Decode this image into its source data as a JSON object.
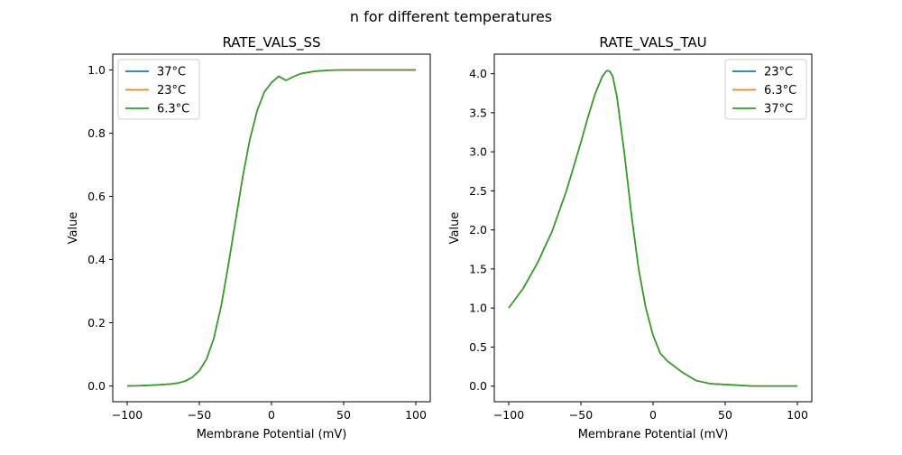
{
  "suptitle": "n for different temperatures",
  "chart_data": [
    {
      "type": "line",
      "title": "RATE_VALS_SS",
      "xlabel": "Membrane Potential (mV)",
      "ylabel": "Value",
      "xlim": [
        -110,
        110
      ],
      "ylim": [
        -0.05,
        1.05
      ],
      "xticks": [
        -100,
        -50,
        0,
        50,
        100
      ],
      "xtick_labels": [
        "−100",
        "−50",
        "0",
        "50",
        "100"
      ],
      "yticks": [
        0.0,
        0.2,
        0.4,
        0.6,
        0.8,
        1.0
      ],
      "ytick_labels": [
        "0.0",
        "0.2",
        "0.4",
        "0.6",
        "0.8",
        "1.0"
      ],
      "legend_position": "upper left",
      "grid": false,
      "x": [
        -100,
        -90,
        -80,
        -70,
        -65,
        -60,
        -55,
        -50,
        -45,
        -40,
        -35,
        -30,
        -25,
        -20,
        -15,
        -10,
        -5,
        0,
        5,
        10,
        15,
        20,
        30,
        40,
        50,
        60,
        70,
        80,
        90,
        100
      ],
      "series": [
        {
          "name": "37°C",
          "color": "#1f77b4",
          "values": [
            0.0,
            0.001,
            0.003,
            0.006,
            0.009,
            0.015,
            0.027,
            0.048,
            0.085,
            0.15,
            0.25,
            0.38,
            0.52,
            0.66,
            0.78,
            0.87,
            0.93,
            0.96,
            0.98,
            0.967,
            0.978,
            0.988,
            0.996,
            0.999,
            1.0,
            1.0,
            1.0,
            1.0,
            1.0,
            1.0
          ]
        },
        {
          "name": "23°C",
          "color": "#ff7f0e",
          "values": [
            0.0,
            0.001,
            0.003,
            0.006,
            0.009,
            0.015,
            0.027,
            0.048,
            0.085,
            0.15,
            0.25,
            0.38,
            0.52,
            0.66,
            0.78,
            0.87,
            0.93,
            0.96,
            0.98,
            0.967,
            0.978,
            0.988,
            0.996,
            0.999,
            1.0,
            1.0,
            1.0,
            1.0,
            1.0,
            1.0
          ]
        },
        {
          "name": "6.3°C",
          "color": "#2ca02c",
          "values": [
            0.0,
            0.001,
            0.003,
            0.006,
            0.009,
            0.015,
            0.027,
            0.048,
            0.085,
            0.15,
            0.25,
            0.38,
            0.52,
            0.66,
            0.78,
            0.87,
            0.93,
            0.96,
            0.98,
            0.967,
            0.978,
            0.988,
            0.996,
            0.999,
            1.0,
            1.0,
            1.0,
            1.0,
            1.0,
            1.0
          ]
        }
      ]
    },
    {
      "type": "line",
      "title": "RATE_VALS_TAU",
      "xlabel": "Membrane Potential (mV)",
      "ylabel": "Value",
      "xlim": [
        -110,
        110
      ],
      "ylim": [
        -0.2,
        4.25
      ],
      "xticks": [
        -100,
        -50,
        0,
        50,
        100
      ],
      "xtick_labels": [
        "−100",
        "−50",
        "0",
        "50",
        "100"
      ],
      "yticks": [
        0.0,
        0.5,
        1.0,
        1.5,
        2.0,
        2.5,
        3.0,
        3.5,
        4.0
      ],
      "ytick_labels": [
        "0.0",
        "0.5",
        "1.0",
        "1.5",
        "2.0",
        "2.5",
        "3.0",
        "3.5",
        "4.0"
      ],
      "legend_position": "upper right",
      "grid": false,
      "x": [
        -100,
        -90,
        -80,
        -70,
        -60,
        -50,
        -45,
        -40,
        -35,
        -32,
        -30,
        -28,
        -25,
        -20,
        -15,
        -10,
        -5,
        0,
        5,
        10,
        20,
        30,
        40,
        50,
        60,
        70,
        80,
        90,
        100
      ],
      "series": [
        {
          "name": "23°C",
          "color": "#1f77b4",
          "values": [
            1.0,
            1.25,
            1.58,
            1.98,
            2.5,
            3.12,
            3.45,
            3.75,
            3.97,
            4.04,
            4.03,
            3.97,
            3.7,
            3.0,
            2.2,
            1.5,
            1.0,
            0.65,
            0.42,
            0.32,
            0.18,
            0.07,
            0.03,
            0.02,
            0.01,
            0.0,
            0.0,
            0.0,
            0.0
          ]
        },
        {
          "name": "6.3°C",
          "color": "#ff7f0e",
          "values": [
            1.0,
            1.25,
            1.58,
            1.98,
            2.5,
            3.12,
            3.45,
            3.75,
            3.97,
            4.04,
            4.03,
            3.97,
            3.7,
            3.0,
            2.2,
            1.5,
            1.0,
            0.65,
            0.42,
            0.32,
            0.18,
            0.07,
            0.03,
            0.02,
            0.01,
            0.0,
            0.0,
            0.0,
            0.0
          ]
        },
        {
          "name": "37°C",
          "color": "#2ca02c",
          "values": [
            1.0,
            1.25,
            1.58,
            1.98,
            2.5,
            3.12,
            3.45,
            3.75,
            3.97,
            4.04,
            4.03,
            3.97,
            3.7,
            3.0,
            2.2,
            1.5,
            1.0,
            0.65,
            0.42,
            0.32,
            0.18,
            0.07,
            0.03,
            0.02,
            0.01,
            0.0,
            0.0,
            0.0,
            0.0
          ]
        }
      ]
    }
  ]
}
